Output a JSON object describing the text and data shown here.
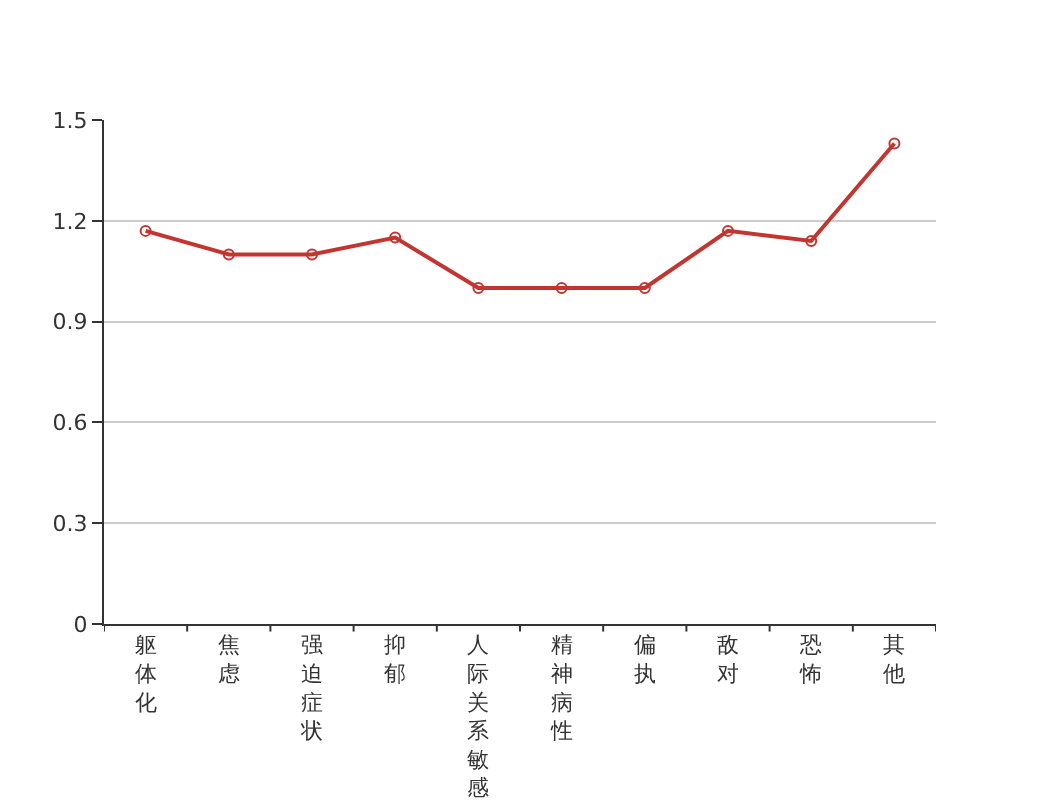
{
  "chart_data": {
    "type": "line",
    "categories": [
      "躯体化",
      "焦虑",
      "强迫症状",
      "抑郁",
      "人际关系敏感",
      "精神病性",
      "偏执",
      "敌对",
      "恐怖",
      "其他"
    ],
    "series": [
      {
        "color": "#c23531",
        "values": [
          1.17,
          1.1,
          1.1,
          1.15,
          1.0,
          1.0,
          1.0,
          1.17,
          1.14,
          1.43
        ]
      }
    ],
    "ylim": [
      0,
      1.5
    ],
    "yticks": [
      0,
      0.3,
      0.6,
      0.9,
      1.2,
      1.5
    ],
    "grid": "y",
    "marker": "circle",
    "line_style": "solid"
  }
}
